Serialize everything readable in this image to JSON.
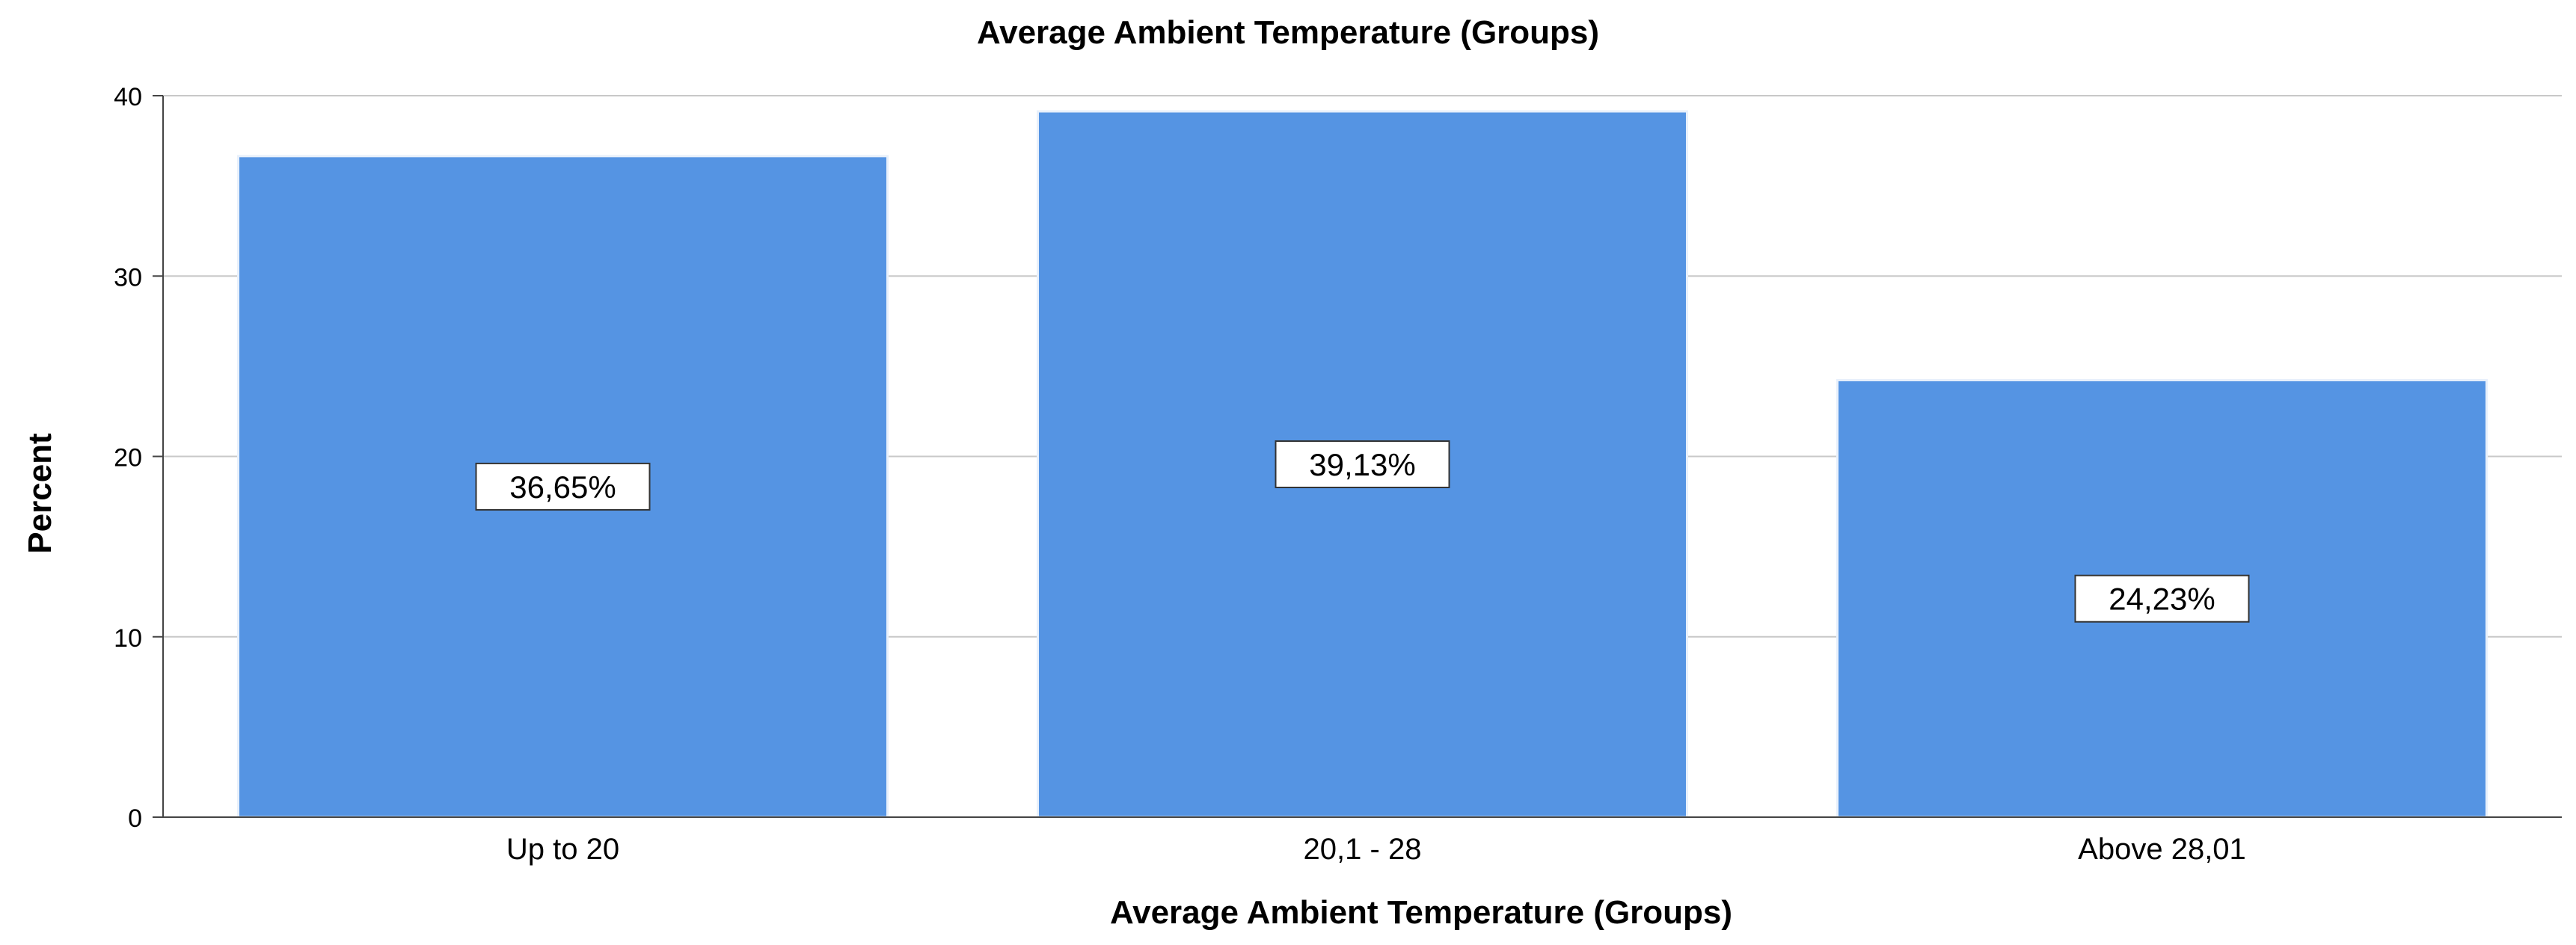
{
  "chart_data": {
    "type": "bar",
    "title": "Average Ambient Temperature (Groups)",
    "xlabel": "Average Ambient Temperature (Groups)",
    "ylabel": "Percent",
    "categories": [
      "Up to 20",
      "20,1 - 28",
      "Above 28,01"
    ],
    "values": [
      36.65,
      39.13,
      24.23
    ],
    "data_labels": [
      "36,65%",
      "39,13%",
      "24,23%"
    ],
    "ylim": [
      0,
      40
    ],
    "yticks": [
      0,
      10,
      20,
      30,
      40
    ],
    "ytick_labels": [
      "0",
      "10",
      "20",
      "30",
      "40"
    ],
    "grid": true,
    "legend": "none",
    "colors": {
      "bar": "#5594e3",
      "bar_edge": "#e8f0fb",
      "grid": "#c8c8c8",
      "axis": "#444444",
      "text": "#000000",
      "label_box_fill": "#ffffff",
      "label_box_stroke": "#333333"
    }
  }
}
